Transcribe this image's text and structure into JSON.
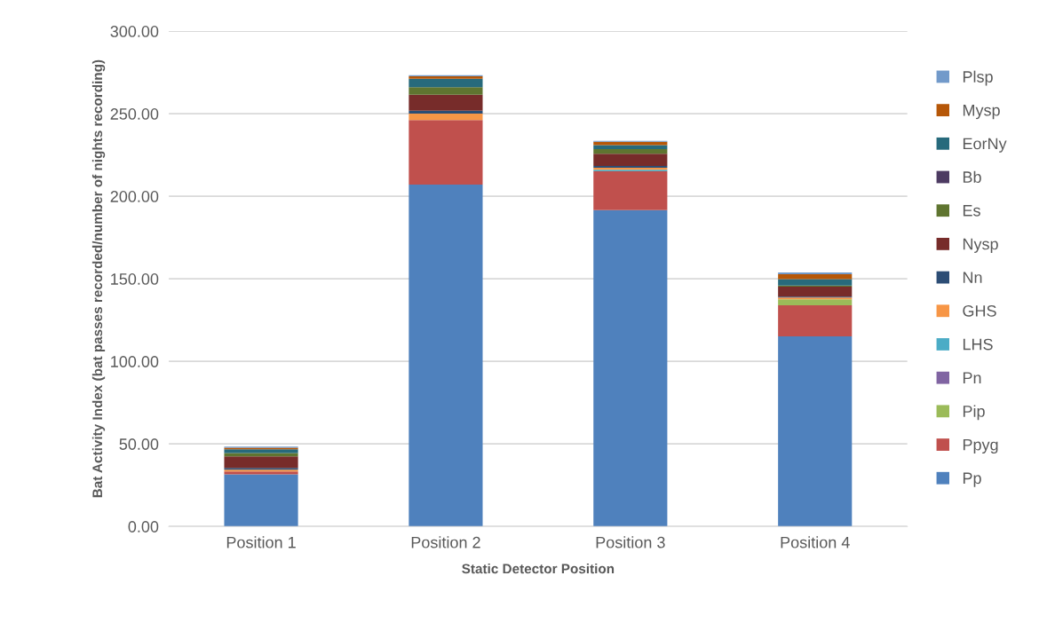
{
  "chart_data": {
    "type": "bar",
    "stacked": true,
    "xlabel": "Static Detector Position",
    "ylabel": "Bat Activity Index (bat passes recorded/number of nights recording)",
    "categories": [
      "Position 1",
      "Position 2",
      "Position 3",
      "Position 4"
    ],
    "series": [
      {
        "name": "Pp",
        "color": "#4f81bd",
        "values": [
          31.5,
          207.0,
          191.6,
          115.1
        ]
      },
      {
        "name": "Ppyg",
        "color": "#c0504d",
        "values": [
          1.8,
          39.2,
          23.5,
          18.8
        ]
      },
      {
        "name": "Pip",
        "color": "#9bbb59",
        "values": [
          0,
          0,
          0,
          3.7
        ]
      },
      {
        "name": "Pn",
        "color": "#8064a2",
        "values": [
          0,
          0,
          0,
          0
        ]
      },
      {
        "name": "LHS",
        "color": "#4bacc6",
        "values": [
          0,
          0,
          1.0,
          0
        ]
      },
      {
        "name": "GHS",
        "color": "#f79646",
        "values": [
          1.1,
          3.8,
          1.2,
          1.1
        ]
      },
      {
        "name": "Nn",
        "color": "#2c4d75",
        "values": [
          1.0,
          1.8,
          1.0,
          0.5
        ]
      },
      {
        "name": "Nysp",
        "color": "#772c2a",
        "values": [
          7.0,
          9.7,
          7.5,
          6.1
        ]
      },
      {
        "name": "Es",
        "color": "#5f7530",
        "values": [
          2.1,
          4.6,
          2.8,
          0.6
        ]
      },
      {
        "name": "Bb",
        "color": "#4d3b62",
        "values": [
          0,
          0,
          0,
          0
        ]
      },
      {
        "name": "EorNy",
        "color": "#276a7c",
        "values": [
          2.2,
          5.0,
          2.4,
          3.9
        ]
      },
      {
        "name": "Mysp",
        "color": "#b65708",
        "values": [
          1.0,
          1.6,
          2.0,
          2.9
        ]
      },
      {
        "name": "Plsp",
        "color": "#729aca",
        "values": [
          0.6,
          0.6,
          0.5,
          1.1
        ]
      }
    ],
    "ylim": [
      0,
      300
    ],
    "yticks": [
      {
        "value": 0,
        "label": "0.00"
      },
      {
        "value": 50,
        "label": "50.00"
      },
      {
        "value": 100,
        "label": "100.00"
      },
      {
        "value": 150,
        "label": "150.00"
      },
      {
        "value": 200,
        "label": "200.00"
      },
      {
        "value": 250,
        "label": "250.00"
      },
      {
        "value": 300,
        "label": "300.00"
      }
    ],
    "grid": "y",
    "legend": "right"
  }
}
